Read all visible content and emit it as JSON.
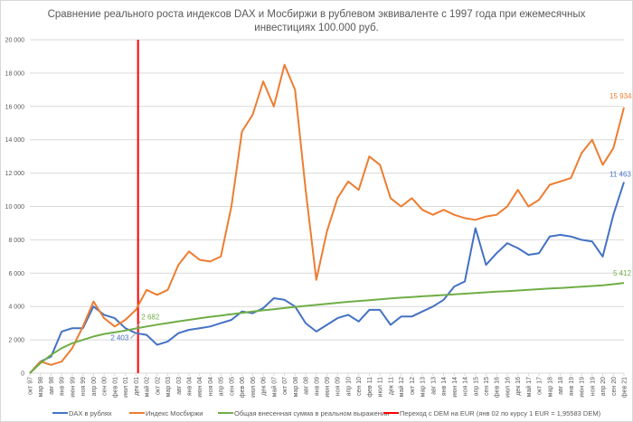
{
  "chart_data": {
    "type": "line",
    "title_lines": [
      "Сравнение реального роста индексов DAX и Мосбиржи в рублевом эквиваленте с 1997 года при ежемесячных",
      "инвестициях 100.000 руб."
    ],
    "xlabel": "",
    "ylabel": "",
    "ylim": [
      0,
      20000
    ],
    "y_ticks": [
      "0",
      "2 000",
      "4 000",
      "6 000",
      "8 000",
      "10 000",
      "12 000",
      "14 000",
      "16 000",
      "18 000",
      "20 000"
    ],
    "grid": true,
    "legend_position": "bottom",
    "categories": [
      "окт 97",
      "мар 98",
      "авг 98",
      "янв 99",
      "июн 99",
      "ноя 99",
      "апр 00",
      "сен 00",
      "фев 01",
      "июл 01",
      "дек 01",
      "май 02",
      "окт 02",
      "мар 03",
      "авг 03",
      "янв 04",
      "июн 04",
      "ноя 04",
      "апр 05",
      "сен 05",
      "фев 06",
      "июл 06",
      "дек 06",
      "май 07",
      "окт 07",
      "мар 08",
      "авг 08",
      "янв 09",
      "июн 09",
      "ноя 09",
      "апр 10",
      "сен 10",
      "фев 11",
      "июл 11",
      "дек 11",
      "май 12",
      "окт 12",
      "мар 13",
      "авг 13",
      "янв 14",
      "июн 14",
      "ноя 14",
      "апр 15",
      "сен 15",
      "фев 16",
      "июл 16",
      "дек 16",
      "май 17",
      "окт 17",
      "мар 18",
      "авг 18",
      "янв 19",
      "июн 19",
      "ноя 19",
      "апр 20",
      "сен 20",
      "фев 21"
    ],
    "series": [
      {
        "name": "DAX в рублях",
        "color": "#4472c4",
        "values": [
          0,
          700,
          1000,
          2500,
          2700,
          2700,
          4000,
          3500,
          3300,
          2700,
          2403,
          2300,
          1700,
          1900,
          2400,
          2600,
          2700,
          2800,
          3000,
          3200,
          3700,
          3600,
          3900,
          4500,
          4400,
          4000,
          3000,
          2500,
          2900,
          3300,
          3500,
          3100,
          3800,
          3800,
          2900,
          3400,
          3400,
          3700,
          4000,
          4400,
          5200,
          5500,
          8700,
          6500,
          7200,
          7800,
          7500,
          7100,
          7200,
          8200,
          8300,
          8200,
          8000,
          7900,
          7000,
          9500,
          11463
        ]
      },
      {
        "name": "Индекс Мосбиржи",
        "color": "#ed7d31",
        "values": [
          0,
          700,
          500,
          700,
          1500,
          2800,
          4300,
          3300,
          2800,
          3200,
          3800,
          5000,
          4700,
          5000,
          6500,
          7300,
          6800,
          6700,
          7000,
          10000,
          14500,
          15500,
          17500,
          16000,
          18500,
          17000,
          11000,
          5600,
          8500,
          10500,
          11500,
          11000,
          13000,
          12500,
          10500,
          10000,
          10500,
          9800,
          9500,
          9800,
          9500,
          9300,
          9200,
          9400,
          9500,
          10000,
          11000,
          10000,
          10400,
          11300,
          11500,
          11700,
          13200,
          14000,
          12500,
          13500,
          15934
        ]
      },
      {
        "name": "Общая внесенная сумма в реальном выражении",
        "color": "#70ad47",
        "values": [
          0,
          600,
          1100,
          1500,
          1800,
          2000,
          2200,
          2350,
          2450,
          2560,
          2682,
          2800,
          2910,
          3010,
          3110,
          3200,
          3290,
          3380,
          3460,
          3540,
          3620,
          3700,
          3770,
          3840,
          3910,
          3980,
          4040,
          4100,
          4160,
          4220,
          4280,
          4330,
          4380,
          4430,
          4480,
          4530,
          4570,
          4610,
          4650,
          4690,
          4730,
          4770,
          4810,
          4850,
          4890,
          4920,
          4960,
          5000,
          5040,
          5080,
          5110,
          5150,
          5190,
          5230,
          5270,
          5340,
          5412
        ]
      }
    ],
    "vertical_marker": {
      "name": "Переход с DEM на EUR (янв 02 по курсу 1 EUR = 1,95583  DEM)",
      "color": "#ff0000",
      "at_category_index": 10.2
    },
    "annotations": [
      {
        "text": "2 403",
        "series": 0,
        "index": 10
      },
      {
        "text": "2 682",
        "series": 2,
        "index": 10
      },
      {
        "text": "15 934",
        "series": 1,
        "index": 56
      },
      {
        "text": "11 463",
        "series": 0,
        "index": 56
      },
      {
        "text": "5 412",
        "series": 2,
        "index": 56
      }
    ]
  }
}
